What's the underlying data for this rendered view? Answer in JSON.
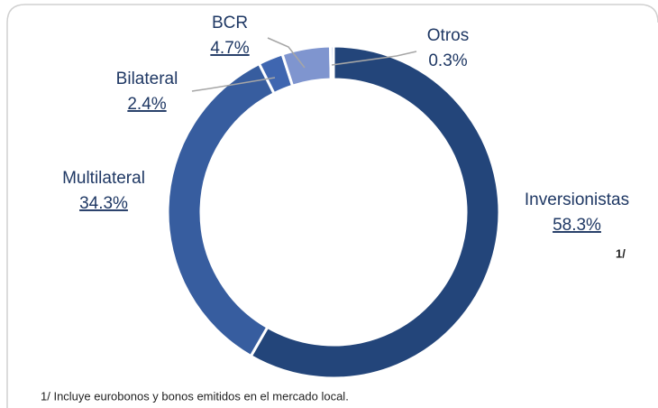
{
  "chart_data": {
    "type": "pie",
    "categories": [
      "Inversionistas",
      "Multilateral",
      "Bilateral",
      "BCR",
      "Otros"
    ],
    "values": [
      58.3,
      34.3,
      2.4,
      4.7,
      0.3
    ],
    "value_labels": [
      "58.3%",
      "34.3%",
      "2.4%",
      "4.7%",
      "0.3%"
    ],
    "colors": [
      "#23457a",
      "#375d9f",
      "#3f66b0",
      "#7f95cf",
      "#a9b8e2"
    ],
    "note": "1/",
    "footnote": "1/ Incluye eurobonos y bonos emitidos en el mercado local."
  }
}
